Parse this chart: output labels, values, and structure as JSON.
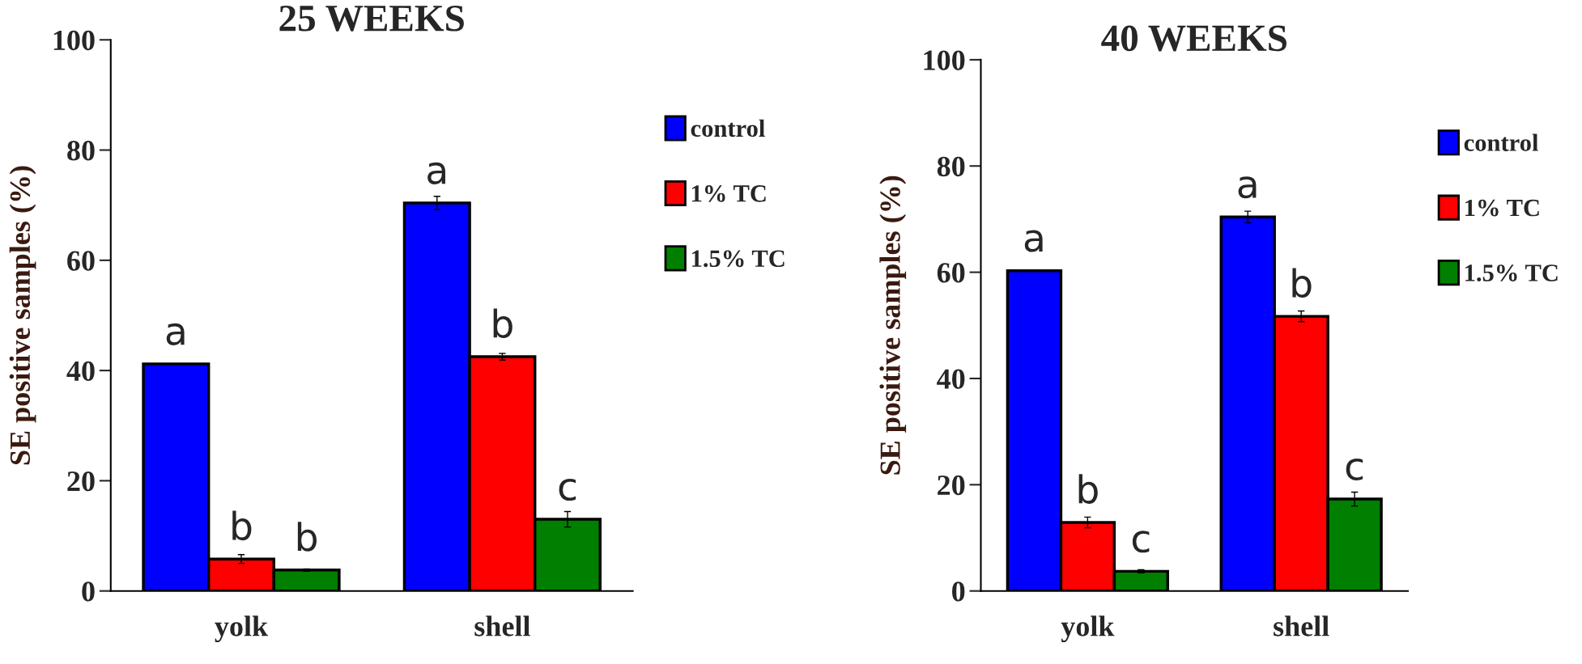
{
  "chart_data": [
    {
      "type": "bar",
      "title": "25 WEEKS",
      "ylabel": "SE positive samples (%)",
      "categories": [
        "yolk",
        "shell"
      ],
      "ylim": [
        0,
        100
      ],
      "yticks": [
        0,
        20,
        40,
        60,
        80,
        100
      ],
      "legend": "right",
      "grid": false,
      "series": [
        {
          "name": "control",
          "color": "#0000ff",
          "values": [
            41.2,
            70.4
          ],
          "errors": [
            null,
            1.2
          ],
          "value_labels": [
            "a",
            "a"
          ]
        },
        {
          "name": "1% TC",
          "color": "#ff0000",
          "values": [
            5.8,
            42.5
          ],
          "errors": [
            0.8,
            0.6
          ],
          "value_labels": [
            "b",
            "b"
          ]
        },
        {
          "name": "1.5% TC",
          "color": "#007f00",
          "values": [
            3.8,
            13.0
          ],
          "errors": [
            0.2,
            1.4
          ],
          "value_labels": [
            "b",
            "c"
          ]
        }
      ]
    },
    {
      "type": "bar",
      "title": "40 WEEKS",
      "ylabel": "SE positive samples (%)",
      "categories": [
        "yolk",
        "shell"
      ],
      "ylim": [
        0,
        100
      ],
      "yticks": [
        0,
        20,
        40,
        60,
        80,
        100
      ],
      "legend": "right",
      "grid": false,
      "series": [
        {
          "name": "control",
          "color": "#0000ff",
          "values": [
            60.3,
            70.4
          ],
          "errors": [
            null,
            1.1
          ],
          "value_labels": [
            "a",
            "a"
          ]
        },
        {
          "name": "1% TC",
          "color": "#ff0000",
          "values": [
            12.9,
            51.7
          ],
          "errors": [
            1.0,
            1.0
          ],
          "value_labels": [
            "b",
            "b"
          ]
        },
        {
          "name": "1.5% TC",
          "color": "#007f00",
          "values": [
            3.7,
            17.3
          ],
          "errors": [
            0.3,
            1.3
          ],
          "value_labels": [
            "c",
            "c"
          ]
        }
      ]
    }
  ]
}
